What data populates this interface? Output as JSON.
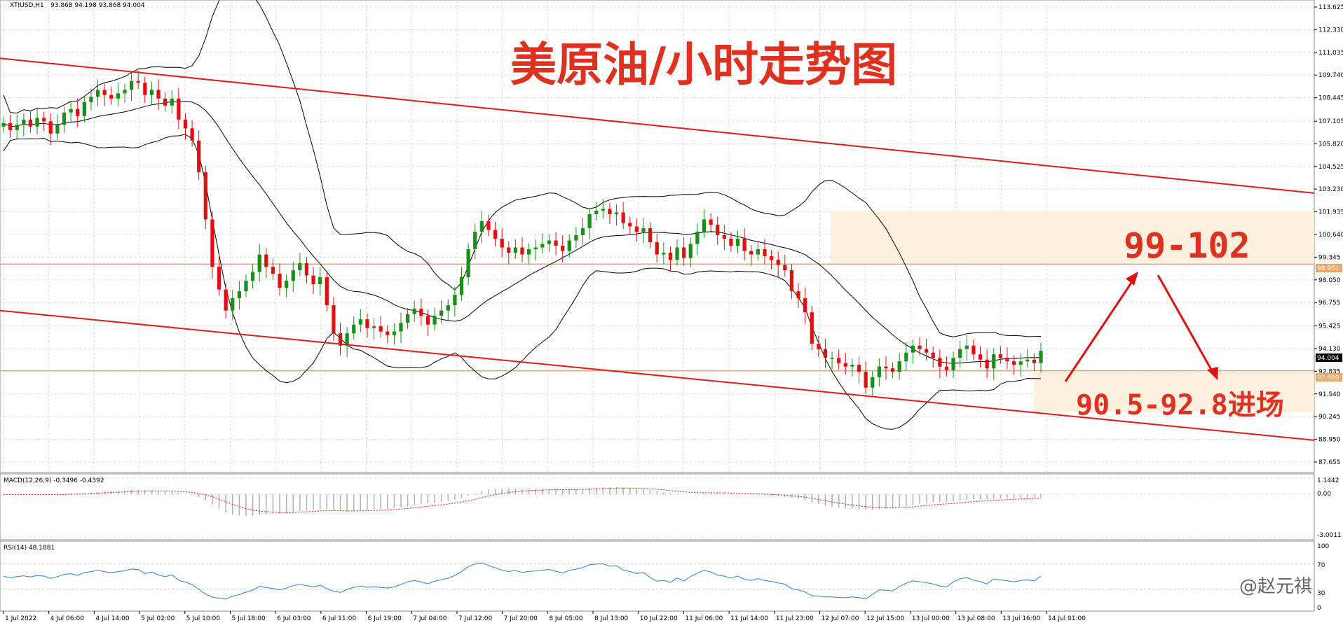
{
  "header": {
    "symbol": "XTIUSD,H1",
    "ohlc": "93.868 94.198 93.868 94.004"
  },
  "annotations": {
    "title": "美原油/小时走势图",
    "target_zone": "99-102",
    "entry_zone": "90.5-92.8进场"
  },
  "price_labels": {
    "current": "94.004",
    "upper_hline": "98.951",
    "lower_hline": "92.869"
  },
  "macd": {
    "label": "MACD(12,26,9) -0.3496 -0.4392",
    "ticks": [
      "1.1442",
      "0.00",
      "-3.0011"
    ]
  },
  "rsi": {
    "label": "RSI(14) 48.1881",
    "ticks": [
      "100",
      "70",
      "30",
      "0"
    ]
  },
  "watermark": "@赵元祺",
  "colors": {
    "bull": "#1a8f1a",
    "bear": "#e01010",
    "channel": "#e31a1a",
    "band": "#000000",
    "hline": "#e8a868",
    "zone": "#fdf0de",
    "rsi": "#2a7de1",
    "macd_signal": "#e01010",
    "macd_hist": "#b0b0b0"
  },
  "chart_data": {
    "type": "candlestick",
    "title": "美原油/小时走势图",
    "symbol": "XTIUSD",
    "timeframe": "H1",
    "y_ticks": [
      "113.625",
      "112.330",
      "111.035",
      "109.740",
      "108.445",
      "107.105",
      "105.820",
      "104.525",
      "103.230",
      "101.935",
      "100.640",
      "99.345",
      "98.050",
      "96.755",
      "95.425",
      "94.130",
      "92.835",
      "91.540",
      "90.245",
      "88.950",
      "87.655"
    ],
    "x_ticks": [
      "1 Jul 2022",
      "4 Jul 06:00",
      "4 Jul 14:00",
      "5 Jul 02:00",
      "5 Jul 10:00",
      "5 Jul 18:00",
      "6 Jul 03:00",
      "6 Jul 11:00",
      "6 Jul 19:00",
      "7 Jul 04:00",
      "7 Jul 12:00",
      "7 Jul 20:00",
      "8 Jul 05:00",
      "8 Jul 13:00",
      "10 Jul 22:00",
      "11 Jul 06:00",
      "11 Jul 14:00",
      "11 Jul 23:00",
      "12 Jul 07:00",
      "12 Jul 15:00",
      "13 Jul 00:00",
      "13 Jul 08:00",
      "13 Jul 16:00",
      "14 Jul 01:00"
    ],
    "ylim": [
      87.655,
      113.625
    ],
    "close_path": [
      107.0,
      106.6,
      106.9,
      107.2,
      106.8,
      107.3,
      107.1,
      106.4,
      106.9,
      107.6,
      107.8,
      107.4,
      108.2,
      108.5,
      108.9,
      108.6,
      108.4,
      108.7,
      108.9,
      109.4,
      109.3,
      108.6,
      108.9,
      108.4,
      108.0,
      108.4,
      107.2,
      106.7,
      106.0,
      104.2,
      101.5,
      98.8,
      97.5,
      96.3,
      97.0,
      97.4,
      98.0,
      98.5,
      99.5,
      98.8,
      98.4,
      97.6,
      98.0,
      98.6,
      99.0,
      98.3,
      97.8,
      98.2,
      96.6,
      95.0,
      94.3,
      95.0,
      95.5,
      95.8,
      95.3,
      95.4,
      95.1,
      94.9,
      95.1,
      95.6,
      96.1,
      96.4,
      96.0,
      95.5,
      96.0,
      96.3,
      96.6,
      97.2,
      98.2,
      99.8,
      100.8,
      101.4,
      100.9,
      100.4,
      99.9,
      99.6,
      99.9,
      99.5,
      99.8,
      99.9,
      100.1,
      100.3,
      100.0,
      99.7,
      100.3,
      100.6,
      101.0,
      101.8,
      102.0,
      102.1,
      101.8,
      101.9,
      101.3,
      101.1,
      100.8,
      101.0,
      100.2,
      99.5,
      99.6,
      99.2,
      99.9,
      99.3,
      100.1,
      100.8,
      101.5,
      101.2,
      100.6,
      100.4,
      100.0,
      100.4,
      99.7,
      99.5,
      99.8,
      99.4,
      99.2,
      98.9,
      98.6,
      97.4,
      97.0,
      96.2,
      94.4,
      94.1,
      93.6,
      93.6,
      93.3,
      93.1,
      93.2,
      92.8,
      91.9,
      92.5,
      93.1,
      93.0,
      92.8,
      93.4,
      93.9,
      94.3,
      94.1,
      93.9,
      93.6,
      93.1,
      92.9,
      93.6,
      94.1,
      94.3,
      93.8,
      93.5,
      93.0,
      93.8,
      93.6,
      93.4,
      93.2,
      93.4,
      93.5,
      93.3,
      94.0
    ],
    "channel_upper": {
      "from": 110.7,
      "to": 103.0
    },
    "channel_lower": {
      "from": 96.3,
      "to": 88.9
    },
    "hlines": [
      98.951,
      92.869
    ],
    "zones": [
      {
        "label": "99-102",
        "from": 99.0,
        "to": 102.0
      },
      {
        "label": "90.5-92.8进场",
        "from": 90.5,
        "to": 92.8
      }
    ],
    "last_price": 94.004,
    "macd_range": [
      -3.0011,
      1.1442
    ],
    "rsi_range": [
      0,
      100
    ]
  }
}
